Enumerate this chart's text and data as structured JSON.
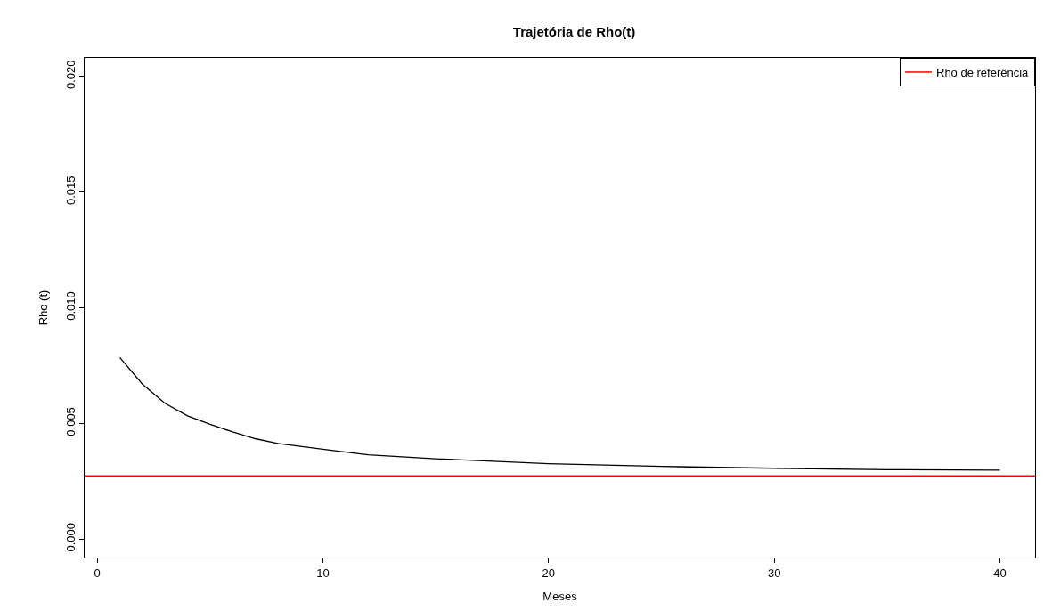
{
  "chart_data": {
    "type": "line",
    "title": "Trajetória de Rho(t)",
    "xlabel": "Meses",
    "ylabel": "Rho (t)",
    "x": [
      1,
      2,
      3,
      4,
      5,
      6,
      7,
      8,
      10,
      12,
      15,
      20,
      25,
      30,
      35,
      40
    ],
    "series": [
      {
        "color": "#000000",
        "values": [
          0.00785,
          0.0067,
          0.00587,
          0.00533,
          0.00496,
          0.00463,
          0.00434,
          0.00413,
          0.00388,
          0.00364,
          0.00347,
          0.00326,
          0.00314,
          0.00306,
          0.003,
          0.00298
        ]
      }
    ],
    "ref_lines": [
      {
        "axis": "y",
        "value": 0.00273,
        "label": "Rho de referência",
        "color": "#ff0000"
      }
    ],
    "xlim": [
      -0.56,
      41.56
    ],
    "xticks": [
      0,
      10,
      20,
      30,
      40
    ],
    "ylim": [
      -0.0008,
      0.0208
    ],
    "yticks": [
      {
        "value": 0,
        "label": "0.000"
      },
      {
        "value": 0.005,
        "label": "0.005"
      },
      {
        "value": 0.01,
        "label": "0.010"
      },
      {
        "value": 0.015,
        "label": "0.015"
      },
      {
        "value": 0.02,
        "label": "0.020"
      }
    ],
    "legend": "top right",
    "line_style": "solid",
    "marker": "none"
  }
}
